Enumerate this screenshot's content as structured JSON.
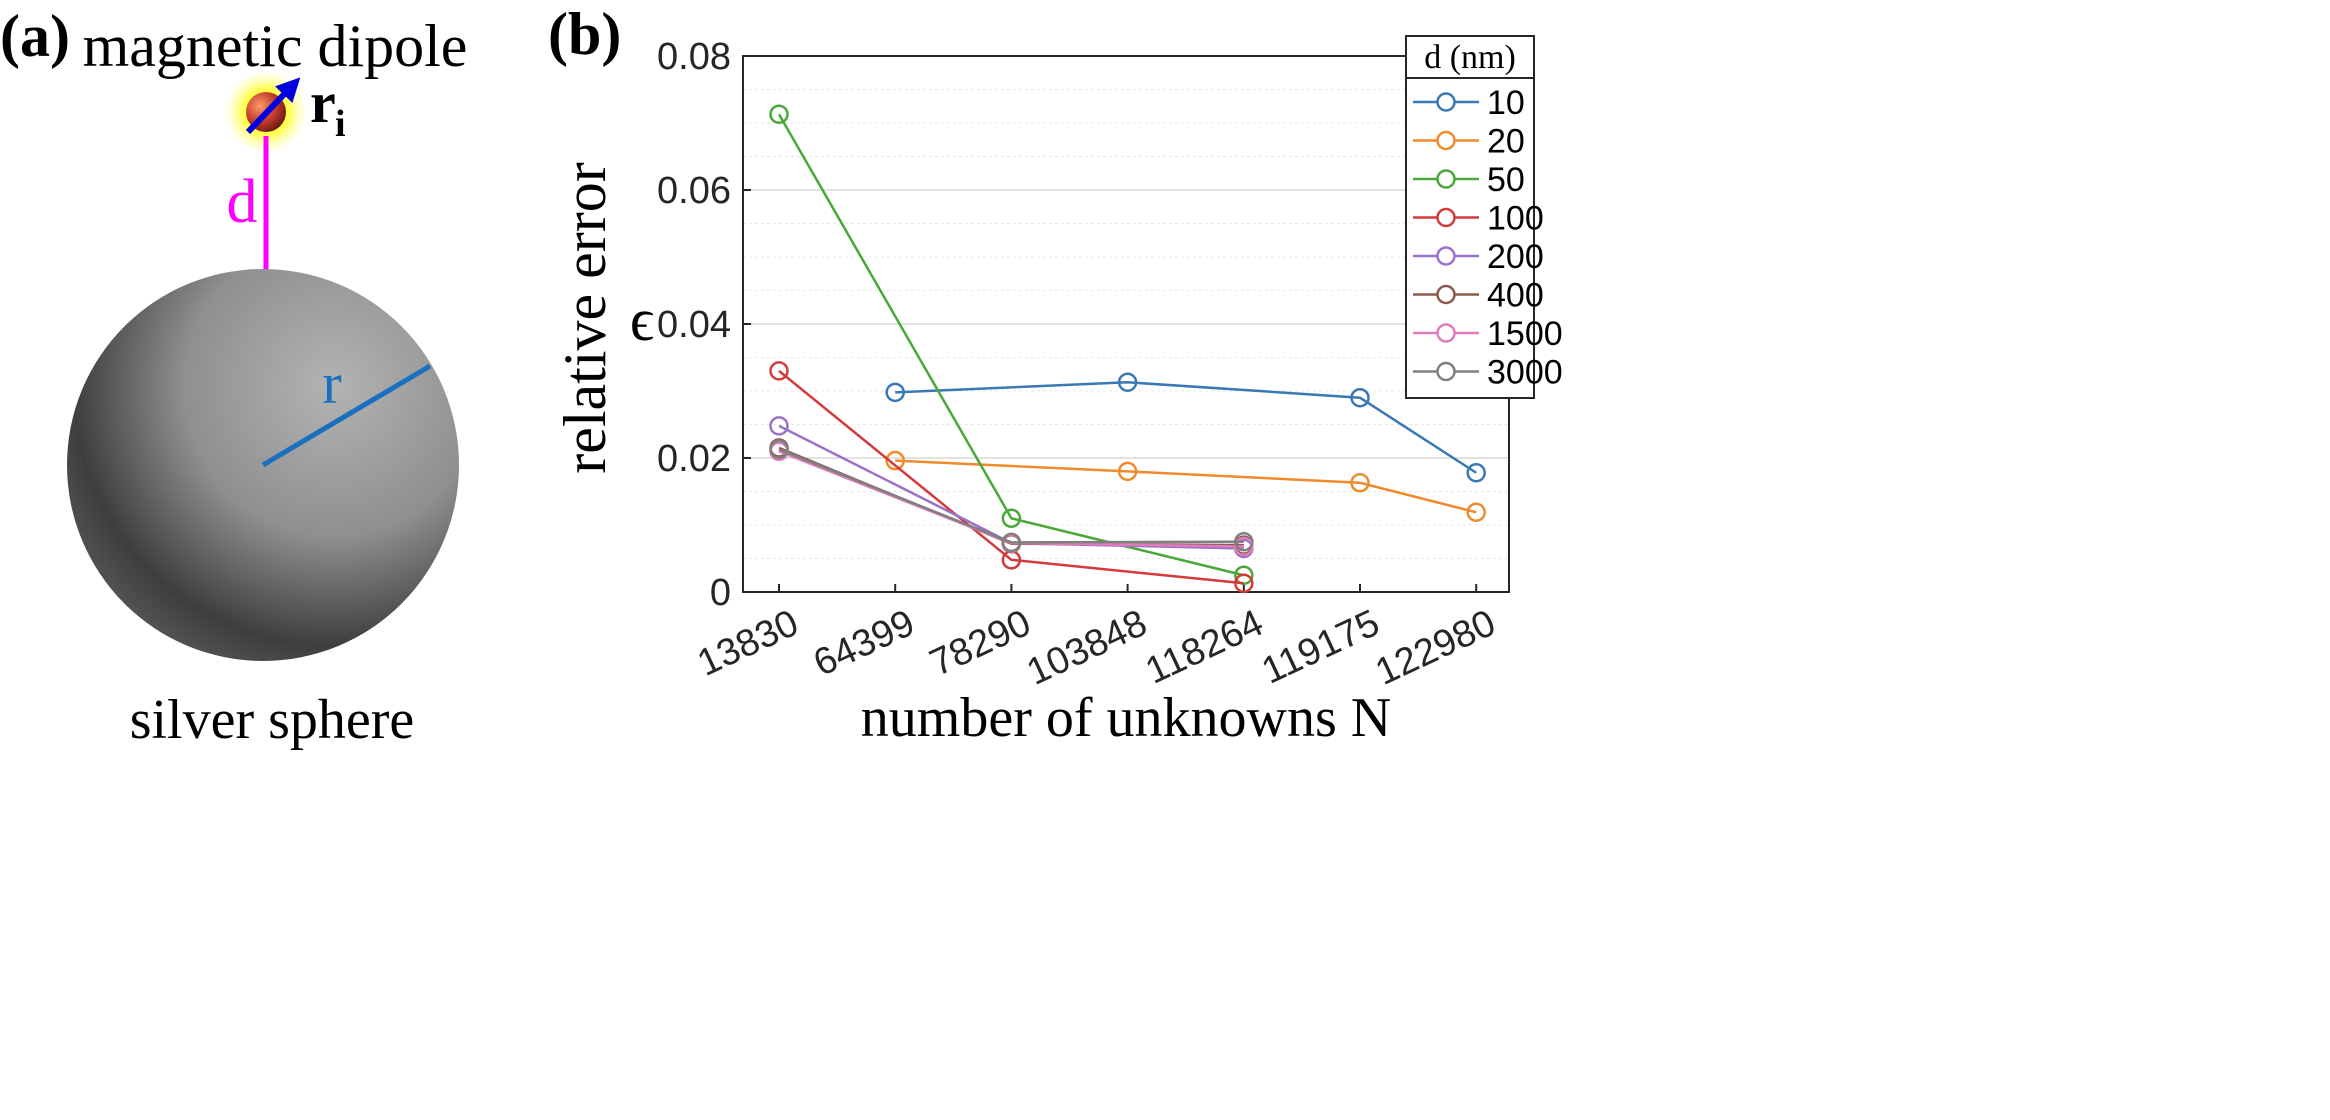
{
  "panel_a": {
    "label": "(a)",
    "dipole_title": "magnetic dipole",
    "position_symbol": "r",
    "position_subscript": "i",
    "distance_label": "d",
    "radius_label": "r",
    "sphere_caption": "silver sphere",
    "colors": {
      "distance": "#ff00ff",
      "radius": "#1a6fbf",
      "arrow": "#0000e0",
      "sphere": "#8a8a8a",
      "glow": "#ffff00",
      "dipole": "#c0392b"
    }
  },
  "panel_b": {
    "label": "(b)",
    "ylabel_text": "relative error",
    "ylabel_symbol": "ϵ",
    "xlabel": "number of unknowns N",
    "legend_title": "d (nm)"
  },
  "chart_data": {
    "type": "line",
    "title": "",
    "xlabel": "number of unknowns N",
    "ylabel": "relative error ϵ",
    "categories": [
      "13830",
      "64399",
      "78290",
      "103848",
      "118264",
      "119175",
      "122980"
    ],
    "ylim": [
      0,
      0.08
    ],
    "yticks": [
      0,
      0.02,
      0.04,
      0.06,
      0.08
    ],
    "ytick_labels": [
      "0",
      "0.02",
      "0.04",
      "0.06",
      "0.08"
    ],
    "grid": true,
    "legend": "top-right",
    "series": [
      {
        "name": "10",
        "color": "#3a78b5",
        "points": [
          [
            1,
            0.0298
          ],
          [
            3,
            0.0313
          ],
          [
            5,
            0.029
          ],
          [
            6,
            0.0178
          ]
        ]
      },
      {
        "name": "20",
        "color": "#f08a2b",
        "points": [
          [
            1,
            0.0196
          ],
          [
            3,
            0.018
          ],
          [
            5,
            0.0163
          ],
          [
            6,
            0.0119
          ]
        ]
      },
      {
        "name": "50",
        "color": "#4aa83a",
        "points": [
          [
            0,
            0.0713
          ],
          [
            2,
            0.011
          ],
          [
            4,
            0.0025
          ]
        ]
      },
      {
        "name": "100",
        "color": "#d33a3a",
        "points": [
          [
            0,
            0.033
          ],
          [
            2,
            0.0048
          ],
          [
            4,
            0.0013
          ]
        ]
      },
      {
        "name": "200",
        "color": "#9a72c8",
        "points": [
          [
            0,
            0.0248
          ],
          [
            2,
            0.0073
          ],
          [
            4,
            0.0065
          ]
        ]
      },
      {
        "name": "400",
        "color": "#8c5a4e",
        "points": [
          [
            0,
            0.0215
          ],
          [
            2,
            0.0072
          ],
          [
            4,
            0.007
          ]
        ]
      },
      {
        "name": "1500",
        "color": "#e27bbd",
        "points": [
          [
            0,
            0.021
          ],
          [
            2,
            0.0073
          ],
          [
            4,
            0.0068
          ]
        ]
      },
      {
        "name": "3000",
        "color": "#7f7f7f",
        "points": [
          [
            0,
            0.0213
          ],
          [
            2,
            0.0074
          ],
          [
            4,
            0.0075
          ]
        ]
      }
    ]
  }
}
